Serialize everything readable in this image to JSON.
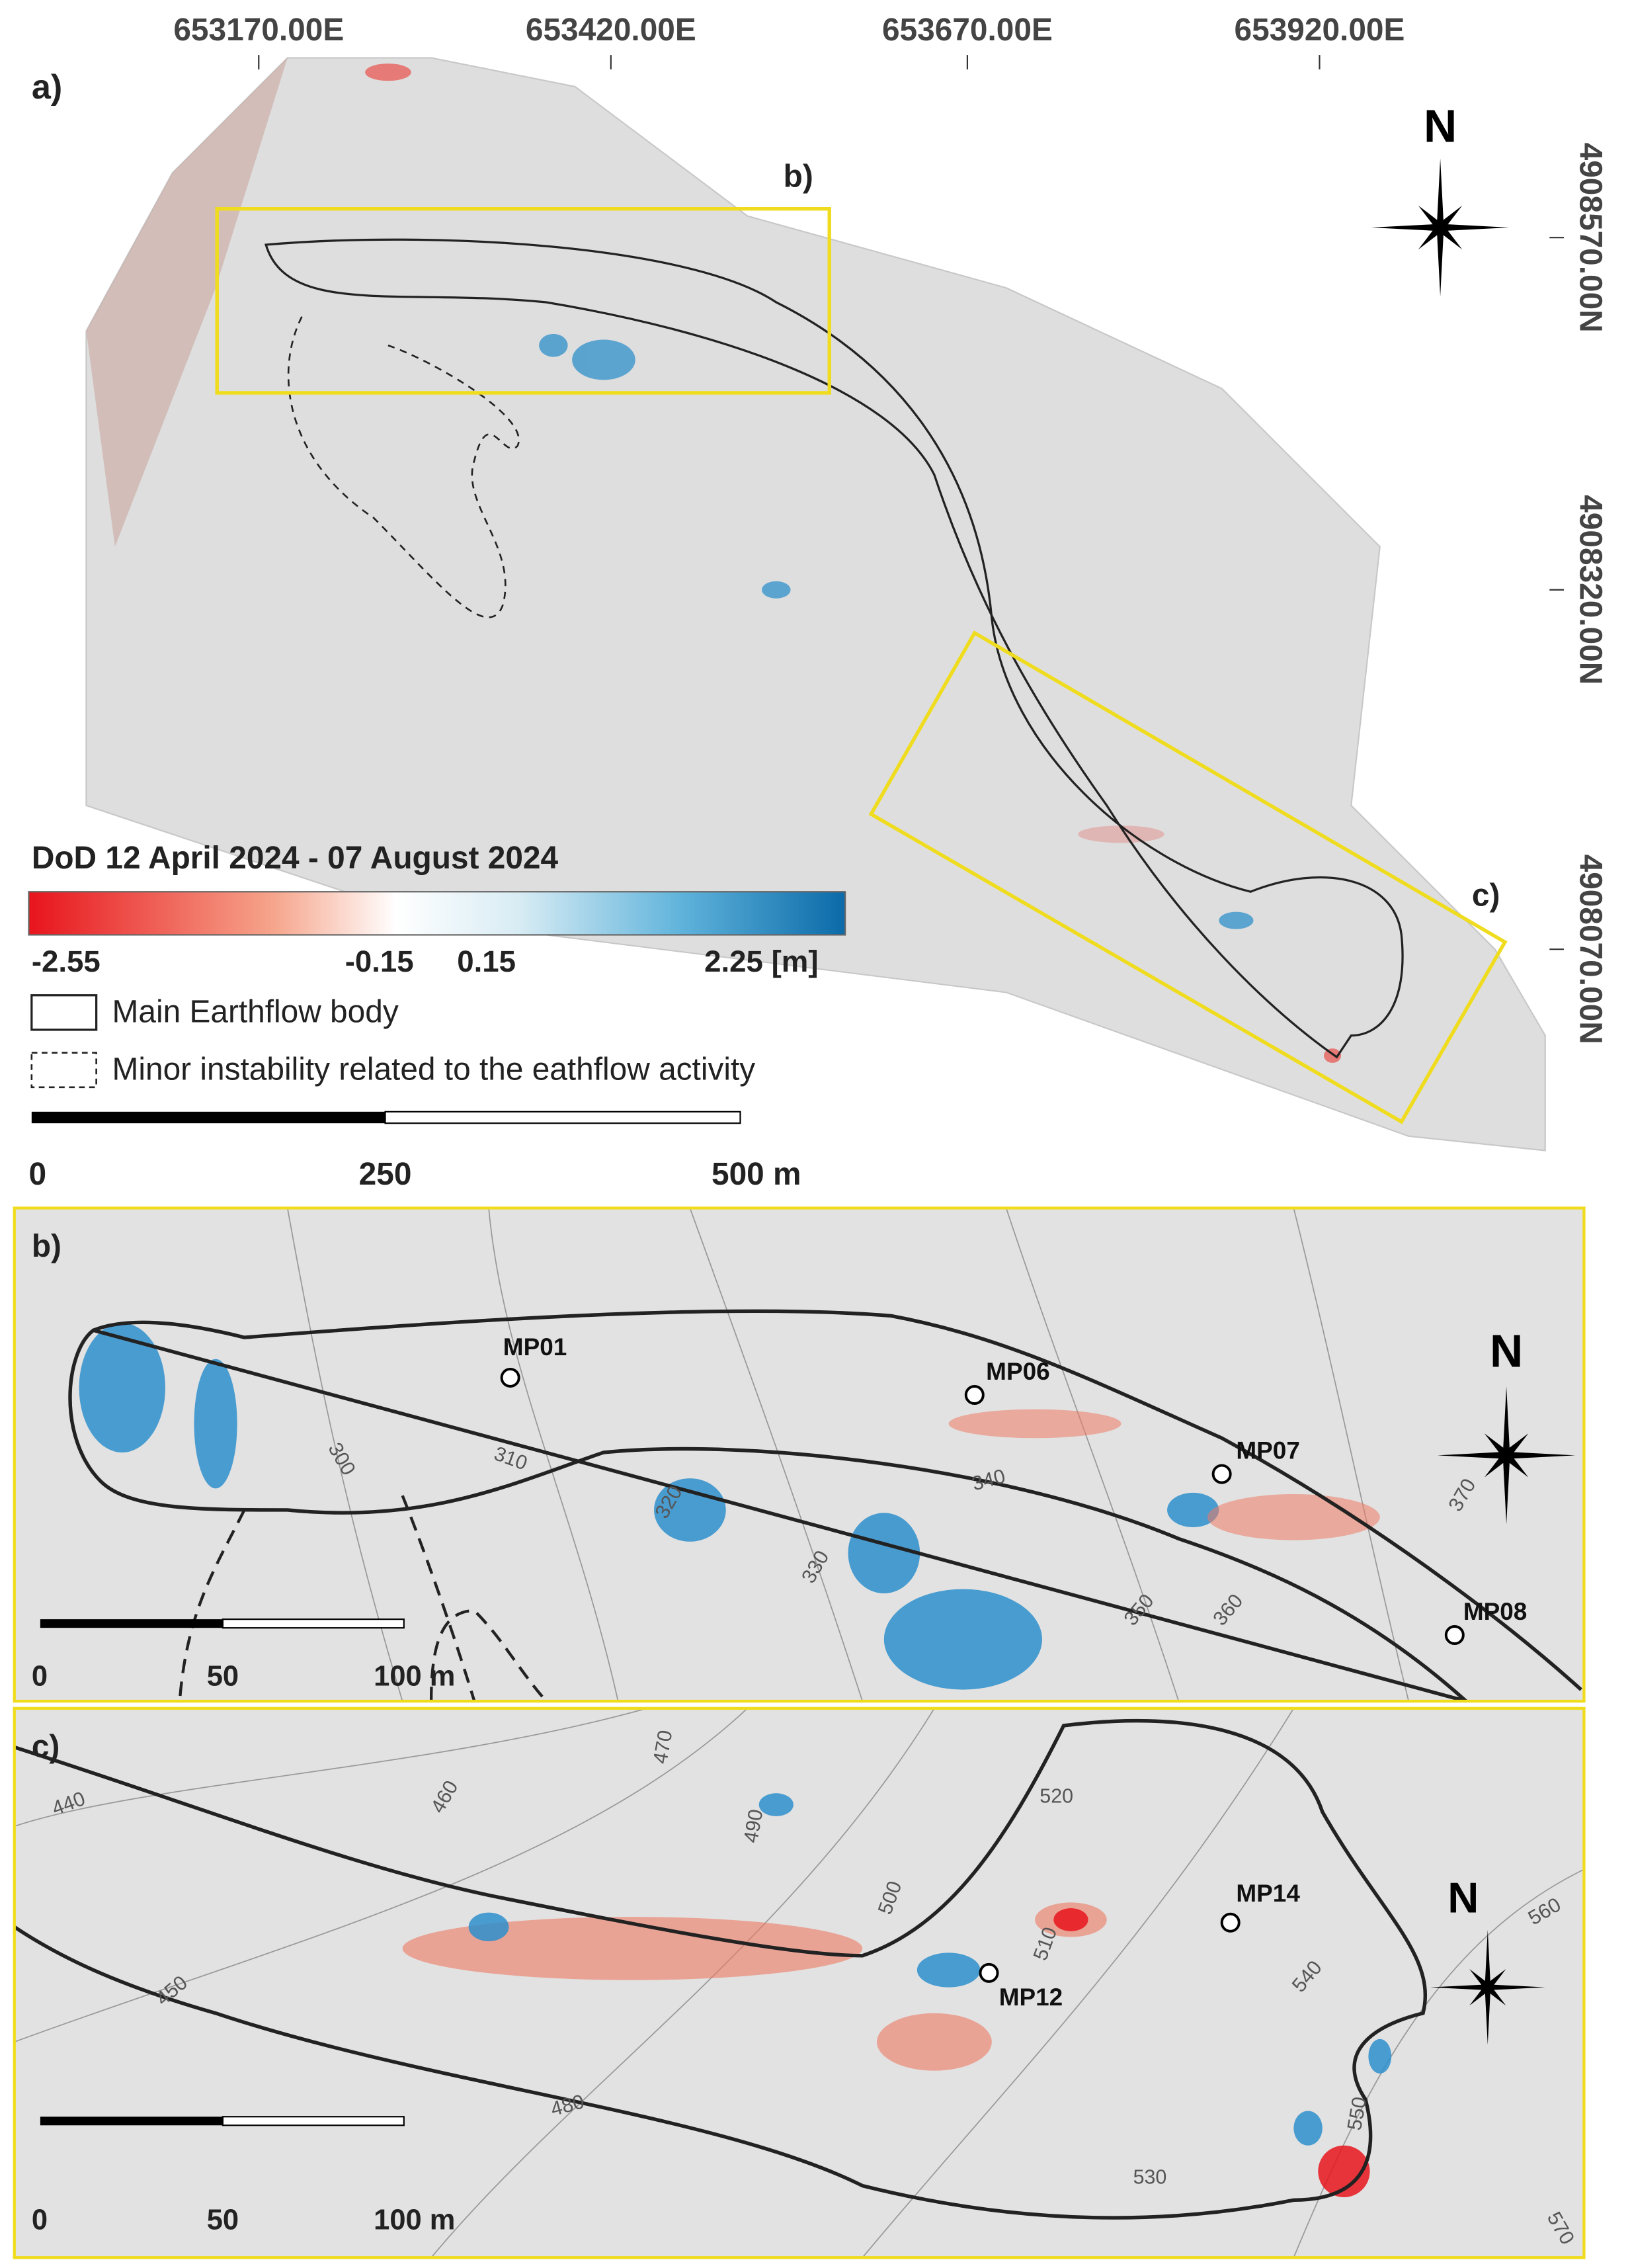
{
  "panel_a": {
    "label": "a)",
    "easting_labels": [
      "653170.00E",
      "653420.00E",
      "653670.00E",
      "653920.00E"
    ],
    "northing_labels": [
      "4908570.00N",
      "4908320.00N",
      "4908070.00N"
    ],
    "north": "N",
    "inset_labels": [
      "b)",
      "c)"
    ],
    "legend": {
      "title": "DoD 12 April 2024 - 07 August 2024",
      "ticks": [
        "-2.55",
        "-0.15",
        "0.15",
        "2.25 [m]"
      ],
      "items": [
        "Main Earthflow body",
        "Minor instability related to the eathflow activity"
      ]
    },
    "scale": [
      "0",
      "250",
      "500 m"
    ]
  },
  "panel_b": {
    "label": "b)",
    "north": "N",
    "points": [
      "MP01",
      "MP06",
      "MP07",
      "MP08"
    ],
    "contours": [
      "300",
      "310",
      "320",
      "330",
      "340",
      "350",
      "360",
      "370"
    ],
    "scale": [
      "0",
      "50",
      "100 m"
    ]
  },
  "panel_c": {
    "label": "c)",
    "north": "N",
    "points": [
      "MP12",
      "MP14"
    ],
    "contours": [
      "440",
      "450",
      "460",
      "470",
      "480",
      "490",
      "500",
      "510",
      "520",
      "530",
      "540",
      "550",
      "560",
      "570"
    ],
    "scale": [
      "0",
      "50",
      "100 m"
    ]
  }
}
